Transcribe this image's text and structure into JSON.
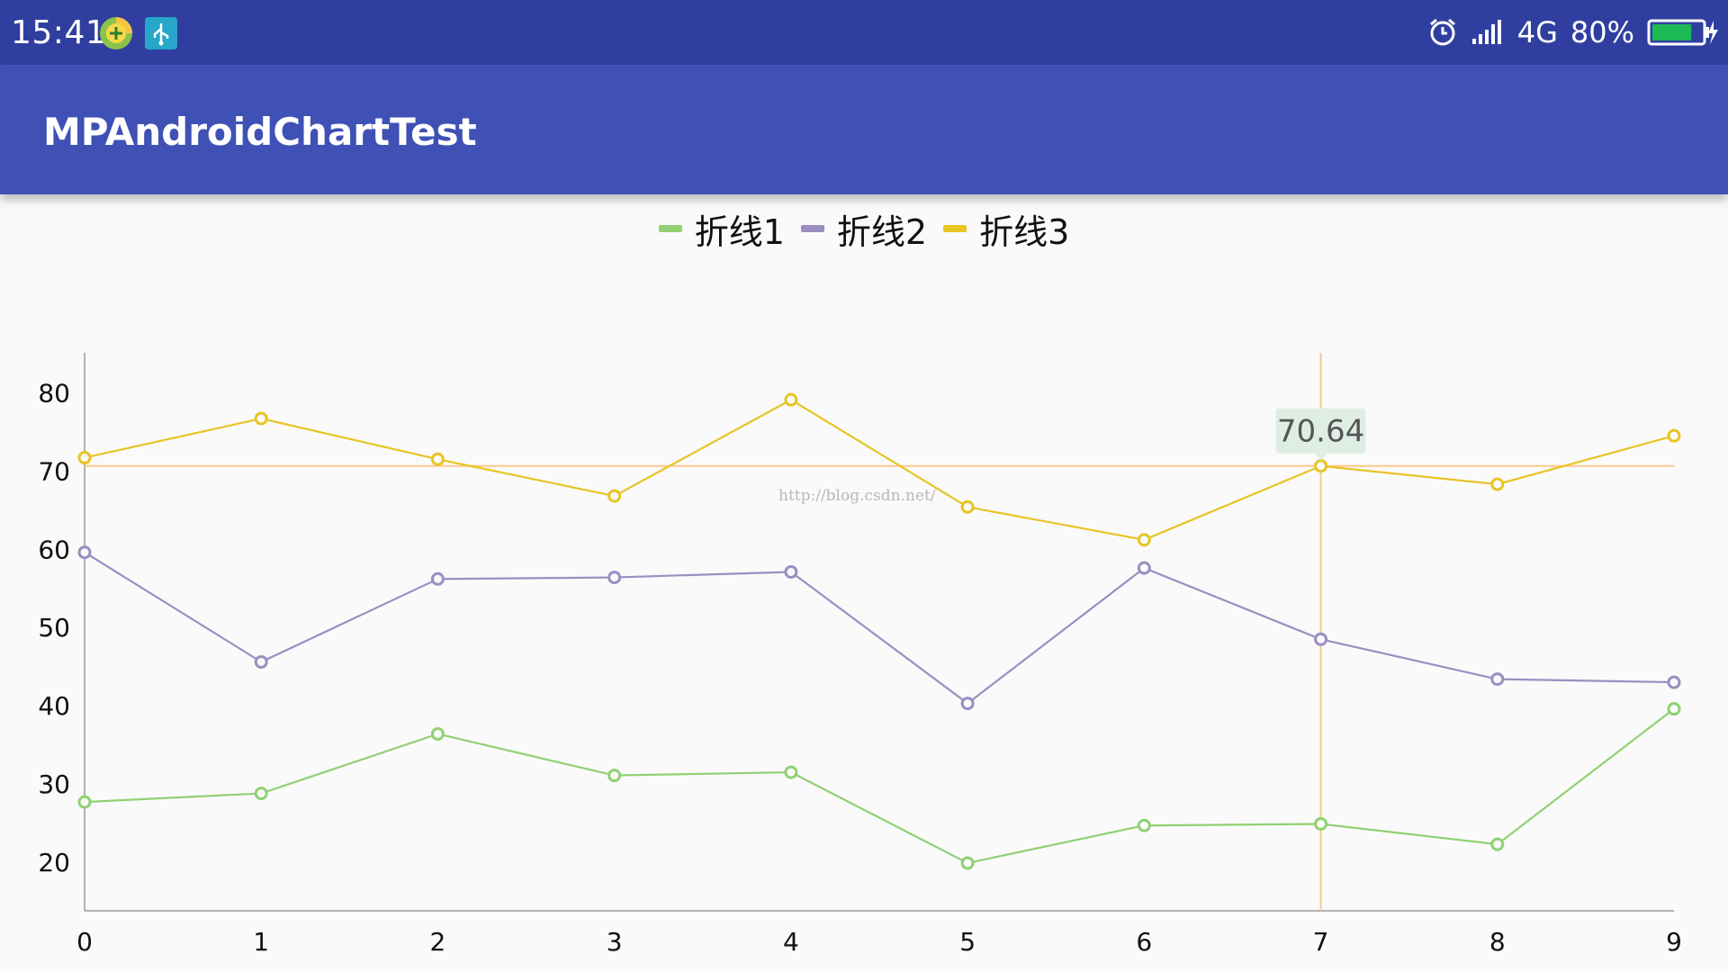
{
  "status_bar": {
    "time": "15:41",
    "network": "4G",
    "battery": "80%",
    "battery_level": 0.8,
    "icons": [
      "plus-app-icon",
      "usb-icon",
      "alarm-icon",
      "signal-icon",
      "battery-icon"
    ]
  },
  "app_bar": {
    "title": "MPAndroidChartTest",
    "color": "#3f51b5",
    "status_color": "#303f9f"
  },
  "chart_data": {
    "type": "line",
    "x": [
      0,
      1,
      2,
      3,
      4,
      5,
      6,
      7,
      8,
      9
    ],
    "x_tick_labels": [
      "0",
      "1",
      "2",
      "3",
      "4",
      "5",
      "6",
      "7",
      "8",
      "9"
    ],
    "y_tick_labels": [
      "20",
      "30",
      "40",
      "50",
      "60",
      "70",
      "80"
    ],
    "y_ticks": [
      20,
      30,
      40,
      50,
      60,
      70,
      80
    ],
    "ylim": [
      13.8,
      85.1
    ],
    "xlim": [
      0,
      9
    ],
    "legend_position": "top-center",
    "grid": false,
    "series": [
      {
        "name": "折线1",
        "color": "#8fd173",
        "values": [
          27.7,
          28.8,
          36.4,
          31.1,
          31.5,
          19.9,
          24.7,
          24.9,
          22.3,
          39.6
        ]
      },
      {
        "name": "折线2",
        "color": "#9b8ec3",
        "values": [
          59.6,
          45.6,
          56.2,
          56.4,
          57.1,
          40.3,
          57.6,
          48.5,
          43.4,
          43.0
        ]
      },
      {
        "name": "折线3",
        "color": "#e8c425",
        "values": [
          71.7,
          76.7,
          71.5,
          66.8,
          79.1,
          65.4,
          61.2,
          70.64,
          68.3,
          74.5
        ]
      }
    ],
    "highlight": {
      "x": 7,
      "y": 70.64,
      "label": "70.64",
      "line_color": "#fcc88c"
    },
    "watermark": "http://blog.csdn.net/"
  }
}
